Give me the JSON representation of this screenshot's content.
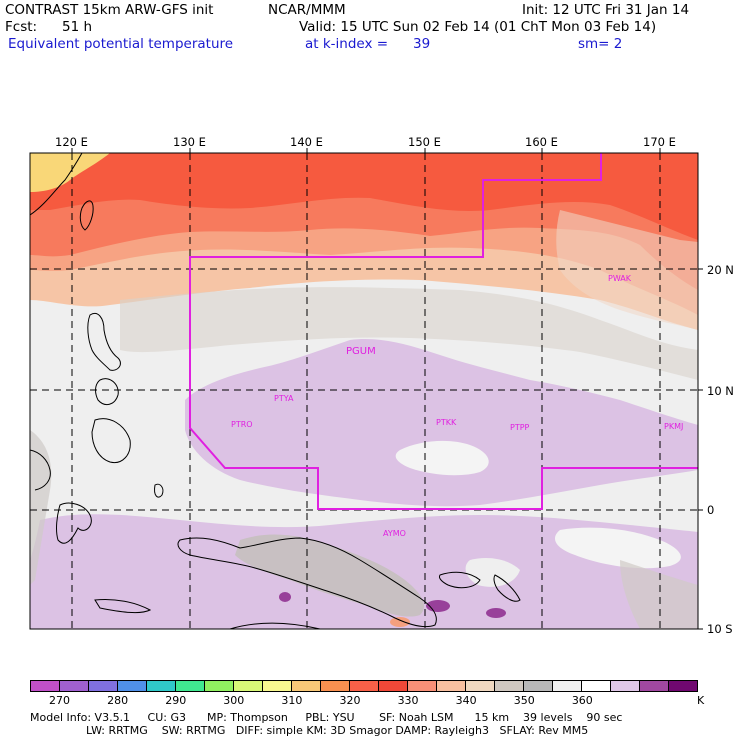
{
  "header": {
    "model": "CONTRAST 15km ARW-GFS init",
    "org": "NCAR/MMM",
    "init": "Init: 12 UTC Fri 31 Jan 14",
    "fcst_label": "Fcst:",
    "fcst_value": "51 h",
    "valid": "Valid: 15 UTC Sun 02 Feb 14 (01 ChT Mon 03 Feb 14)",
    "field": "Equivalent potential temperature",
    "level_label": "at k-index =",
    "level_value": "39",
    "smooth": "sm= 2"
  },
  "map": {
    "lon_labels": [
      "120 E",
      "130 E",
      "140 E",
      "150 E",
      "160 E",
      "170 E"
    ],
    "lat_labels": [
      "20 N",
      "10 N",
      "0",
      "10 S"
    ],
    "stations": [
      "PWAK",
      "PGUM",
      "PTYA",
      "PTRO",
      "PTKK",
      "PTPP",
      "PKMJ",
      "AYMO"
    ]
  },
  "colorbar": {
    "colors": [
      "#c050c8",
      "#a060d0",
      "#8070e0",
      "#5090e8",
      "#30c8c8",
      "#40e890",
      "#90f060",
      "#d8f878",
      "#f8f890",
      "#f8c878",
      "#f89050",
      "#f86048",
      "#f04838",
      "#f89078",
      "#f8c0a0",
      "#f0d8c0",
      "#d0c8c0",
      "#b8b8b8",
      "#f0f0f0",
      "#ffffff",
      "#e0c8e8",
      "#a048a0",
      "#700870"
    ],
    "ticks": [
      "270",
      "280",
      "290",
      "300",
      "310",
      "320",
      "330",
      "340",
      "350",
      "360"
    ],
    "unit": "K"
  },
  "footer": {
    "line1": "Model Info: V3.5.1     CU: G3      MP: Thompson     PBL: YSU       SF: Noah LSM      15 km    39 levels    90 sec",
    "line2": "                LW: RRTMG    SW: RRTMG   DIFF: simple KM: 3D Smagor DAMP: Rayleigh3   SFLAY: Rev MM5"
  }
}
